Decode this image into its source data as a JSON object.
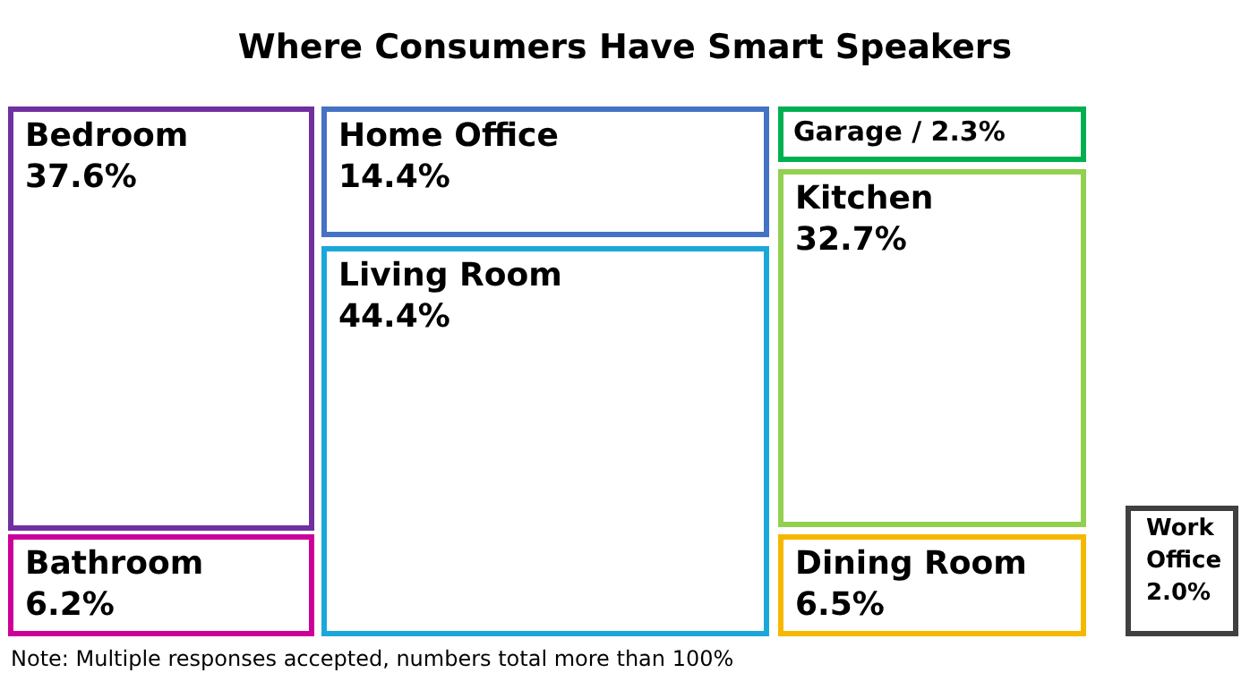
{
  "chart_data": {
    "type": "other",
    "title": "Where Consumers Have Smart Speakers",
    "categories": [
      "Bedroom",
      "Bathroom",
      "Home Office",
      "Living Room",
      "Garage /",
      "Kitchen",
      "Dining Room",
      "Work Office"
    ],
    "values": [
      37.6,
      6.2,
      14.4,
      44.4,
      2.3,
      32.7,
      6.5,
      2.0
    ],
    "value_labels": [
      "37.6%",
      "6.2%",
      "14.4%",
      "44.4%",
      "2.3%",
      "32.7%",
      "6.5%",
      "2.0%"
    ],
    "colors": [
      "#7030a0",
      "#cc0099",
      "#4472c4",
      "#1ba8d8",
      "#00b050",
      "#92d050",
      "#f5b800",
      "#404040"
    ],
    "annotations": [
      "Note: Multiple responses accepted, numbers total more than 100%"
    ]
  }
}
